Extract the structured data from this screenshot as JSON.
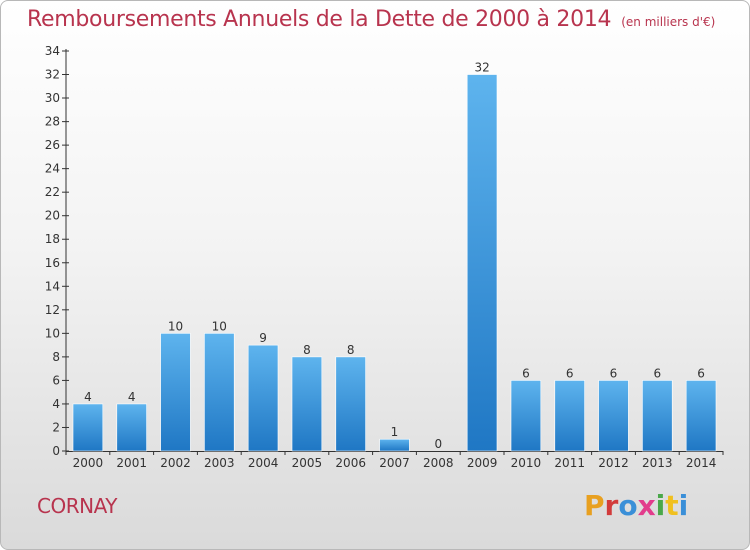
{
  "header": {
    "title": "Remboursements Annuels de la Dette de 2000 à 2014",
    "unit": "(en milliers d'€)"
  },
  "footer": {
    "commune": "CORNAY",
    "logo": "Proxiti",
    "logo_colors": [
      "#e8a020",
      "#d23b3b",
      "#3a8fd8",
      "#e23c8c",
      "#4aa84a",
      "#f0c020",
      "#3a8fd8"
    ]
  },
  "colors": {
    "title": "#b8344e",
    "bar_light": "#5eb4ee",
    "bar_dark": "#1f77c4"
  },
  "chart_data": {
    "type": "bar",
    "title": "Remboursements Annuels de la Dette de 2000 à 2014",
    "categories": [
      "2000",
      "2001",
      "2002",
      "2003",
      "2004",
      "2005",
      "2006",
      "2007",
      "2008",
      "2009",
      "2010",
      "2011",
      "2012",
      "2013",
      "2014"
    ],
    "values": [
      4,
      4,
      10,
      10,
      9,
      8,
      8,
      1,
      0,
      32,
      6,
      6,
      6,
      6,
      6
    ],
    "ylim": [
      0,
      34
    ],
    "yticks": [
      0,
      2,
      4,
      6,
      8,
      10,
      12,
      14,
      16,
      18,
      20,
      22,
      24,
      26,
      28,
      30,
      32,
      34
    ],
    "xlabel": "",
    "ylabel": "",
    "grid": false,
    "data_labels": true
  }
}
